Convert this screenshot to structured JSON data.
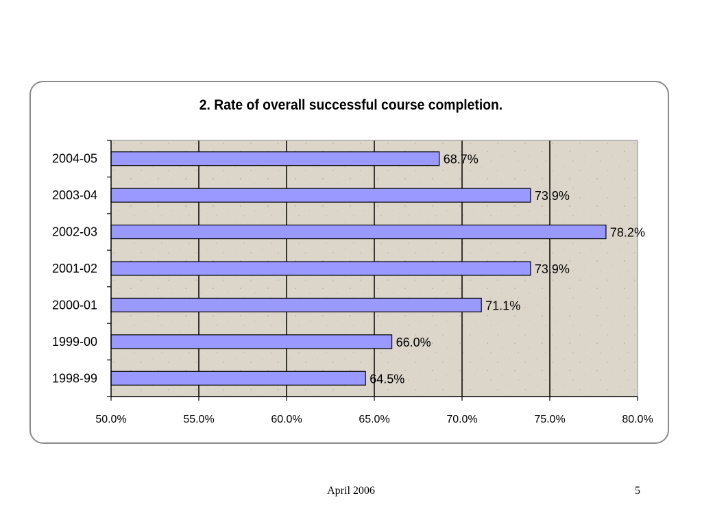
{
  "slide": {
    "footer_date": "April 2006",
    "page_number": "5"
  },
  "colors": {
    "bar_fill": "#9999ff",
    "bar_stroke": "#000000",
    "plot_background": "#dcd6ca",
    "gridline": "#000000"
  },
  "chart_data": {
    "type": "bar",
    "orientation": "horizontal",
    "title": "2.  Rate of overall successful course completion.",
    "xlabel": "",
    "ylabel": "",
    "categories": [
      "2004-05",
      "2003-04",
      "2002-03",
      "2001-02",
      "2000-01",
      "1999-00",
      "1998-99"
    ],
    "values": [
      68.7,
      73.9,
      78.2,
      73.9,
      71.1,
      66.0,
      64.5
    ],
    "data_labels": [
      "68.7%",
      "73.9%",
      "78.2%",
      "73.9%",
      "71.1%",
      "66.0%",
      "64.5%"
    ],
    "xlim": [
      50,
      80
    ],
    "x_ticks": [
      50,
      55,
      60,
      65,
      70,
      75,
      80
    ],
    "x_tick_labels": [
      "50.0%",
      "55.0%",
      "60.0%",
      "65.0%",
      "70.0%",
      "75.0%",
      "80.0%"
    ],
    "grid": true,
    "legend": "none"
  }
}
